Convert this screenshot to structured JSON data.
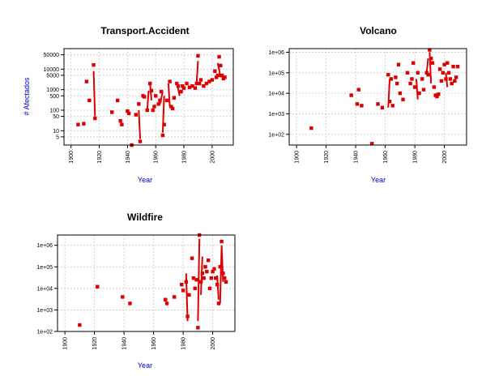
{
  "chart_data": [
    {
      "type": "scatter",
      "title": "Transport.Accident",
      "xlabel": "Year",
      "ylabel": "# Afectados",
      "xlim": [
        1895,
        2015
      ],
      "ylim": [
        2,
        100000
      ],
      "y_scale": "log",
      "grid": true,
      "x_ticks": [
        1900,
        1920,
        1940,
        1960,
        1980,
        2000
      ],
      "x_tick_labels": [
        "1900",
        "1920",
        "1940",
        "1960",
        "1980",
        "2000"
      ],
      "y_ticks": [
        5,
        10,
        50,
        100,
        500,
        1000,
        5000,
        10000,
        50000
      ],
      "y_tick_labels": [
        "5",
        "10",
        "50",
        "100",
        "500",
        "1000",
        "5000",
        "10000",
        "50000"
      ],
      "color": "#dd0000",
      "points": [
        [
          1905,
          20
        ],
        [
          1909,
          22
        ],
        [
          1911,
          2500
        ],
        [
          1913,
          300
        ],
        [
          1916,
          16000
        ],
        [
          1917,
          40
        ],
        [
          1929,
          80
        ],
        [
          1933,
          300
        ],
        [
          1935,
          30
        ],
        [
          1936,
          20
        ],
        [
          1940,
          90
        ],
        [
          1941,
          70
        ],
        [
          1943,
          2
        ],
        [
          1946,
          60
        ],
        [
          1948,
          200
        ],
        [
          1949,
          3
        ],
        [
          1951,
          500
        ],
        [
          1952,
          450
        ],
        [
          1954,
          100
        ],
        [
          1956,
          2000
        ],
        [
          1957,
          900
        ],
        [
          1958,
          100
        ],
        [
          1959,
          150
        ],
        [
          1960,
          500
        ],
        [
          1962,
          200
        ],
        [
          1963,
          300
        ],
        [
          1964,
          800
        ],
        [
          1965,
          6
        ],
        [
          1966,
          20
        ],
        [
          1968,
          300
        ],
        [
          1970,
          2500
        ],
        [
          1971,
          150
        ],
        [
          1972,
          120
        ],
        [
          1973,
          400
        ],
        [
          1975,
          2000
        ],
        [
          1976,
          1500
        ],
        [
          1978,
          800
        ],
        [
          1979,
          1500
        ],
        [
          1980,
          1200
        ],
        [
          1982,
          2000
        ],
        [
          1984,
          1300
        ],
        [
          1986,
          1500
        ],
        [
          1988,
          1200
        ],
        [
          1989,
          2000
        ],
        [
          1990,
          45000
        ],
        [
          1991,
          2000
        ],
        [
          1992,
          3000
        ],
        [
          1994,
          1500
        ],
        [
          1996,
          2000
        ],
        [
          1998,
          2500
        ],
        [
          2000,
          3000
        ],
        [
          2002,
          8000
        ],
        [
          2003,
          4000
        ],
        [
          2004,
          5000
        ],
        [
          2005,
          40000
        ],
        [
          2006,
          15000
        ],
        [
          2007,
          5000
        ],
        [
          2008,
          3500
        ],
        [
          2009,
          4000
        ]
      ],
      "segments": [
        [
          [
            1916,
            8000
          ],
          [
            1917,
            50
          ]
        ],
        [
          [
            1948,
            100
          ],
          [
            1949,
            4
          ]
        ],
        [
          [
            1954,
            100
          ],
          [
            1955,
            900
          ]
        ],
        [
          [
            1956,
            2000
          ],
          [
            1957,
            300
          ]
        ],
        [
          [
            1963,
            200
          ],
          [
            1965,
            800
          ]
        ],
        [
          [
            1965,
            8
          ],
          [
            1966,
            500
          ]
        ],
        [
          [
            1969,
            2000
          ],
          [
            1970,
            150
          ]
        ],
        [
          [
            1975,
            2000
          ],
          [
            1977,
            500
          ]
        ],
        [
          [
            1989,
            2000
          ],
          [
            1990,
            25000
          ]
        ],
        [
          [
            2004,
            20000
          ],
          [
            2006,
            4000
          ]
        ]
      ]
    },
    {
      "type": "scatter",
      "title": "Volcano",
      "xlabel": "Year",
      "ylabel": "",
      "xlim": [
        1895,
        2015
      ],
      "ylim": [
        30,
        1500000
      ],
      "y_scale": "log",
      "grid": true,
      "x_ticks": [
        1900,
        1920,
        1940,
        1960,
        1980,
        2000
      ],
      "x_tick_labels": [
        "1900",
        "1920",
        "1940",
        "1960",
        "1980",
        "2000"
      ],
      "y_ticks": [
        100,
        1000,
        10000,
        100000,
        1000000
      ],
      "y_tick_labels": [
        "1e+02",
        "1e+03",
        "1e+04",
        "1e+05",
        "1e+06"
      ],
      "color": "#dd0000",
      "points": [
        [
          1910,
          200
        ],
        [
          1937,
          8000
        ],
        [
          1941,
          3000
        ],
        [
          1942,
          15000
        ],
        [
          1944,
          2500
        ],
        [
          1951,
          35
        ],
        [
          1955,
          3000
        ],
        [
          1958,
          2000
        ],
        [
          1962,
          80000
        ],
        [
          1963,
          4000
        ],
        [
          1964,
          50000
        ],
        [
          1965,
          2500
        ],
        [
          1967,
          60000
        ],
        [
          1968,
          30000
        ],
        [
          1969,
          250000
        ],
        [
          1970,
          10000
        ],
        [
          1972,
          5000
        ],
        [
          1975,
          100000
        ],
        [
          1977,
          30000
        ],
        [
          1978,
          50000
        ],
        [
          1979,
          300000
        ],
        [
          1980,
          20000
        ],
        [
          1982,
          100000
        ],
        [
          1983,
          10000
        ],
        [
          1985,
          50000
        ],
        [
          1986,
          15000
        ],
        [
          1988,
          100000
        ],
        [
          1989,
          80000
        ],
        [
          1990,
          1300000
        ],
        [
          1991,
          500000
        ],
        [
          1992,
          300000
        ],
        [
          1993,
          20000
        ],
        [
          1994,
          8000
        ],
        [
          1995,
          7000
        ],
        [
          1996,
          9000
        ],
        [
          1997,
          150000
        ],
        [
          1998,
          40000
        ],
        [
          1999,
          100000
        ],
        [
          2000,
          250000
        ],
        [
          2001,
          50000
        ],
        [
          2002,
          300000
        ],
        [
          2003,
          100000
        ],
        [
          2004,
          50000
        ],
        [
          2005,
          30000
        ],
        [
          2006,
          200000
        ],
        [
          2007,
          40000
        ],
        [
          2008,
          60000
        ],
        [
          2009,
          200000
        ]
      ],
      "segments": [
        [
          [
            1962,
            2000
          ],
          [
            1963,
            50000
          ]
        ],
        [
          [
            1981,
            50000
          ],
          [
            1982,
            5000
          ]
        ],
        [
          [
            1988,
            100000
          ],
          [
            1989,
            500000
          ]
        ],
        [
          [
            1990,
            1000000
          ],
          [
            1991,
            30000
          ]
        ],
        [
          [
            2001,
            100000
          ],
          [
            2002,
            20000
          ]
        ]
      ]
    },
    {
      "type": "scatter",
      "title": "Wildfire",
      "xlabel": "Year",
      "ylabel": "",
      "xlim": [
        1895,
        2015
      ],
      "ylim": [
        100,
        3000000
      ],
      "y_scale": "log",
      "grid": true,
      "x_ticks": [
        1900,
        1920,
        1940,
        1960,
        1980,
        2000
      ],
      "x_tick_labels": [
        "1900",
        "1920",
        "1940",
        "1960",
        "1980",
        "2000"
      ],
      "y_ticks": [
        100,
        1000,
        10000,
        100000,
        1000000
      ],
      "y_tick_labels": [
        "1e+02",
        "1e+03",
        "1e+04",
        "1e+05",
        "1e+06"
      ],
      "color": "#dd0000",
      "points": [
        [
          1910,
          200
        ],
        [
          1922,
          12000
        ],
        [
          1939,
          4000
        ],
        [
          1944,
          2000
        ],
        [
          1968,
          3000
        ],
        [
          1969,
          2000
        ],
        [
          1974,
          4000
        ],
        [
          1979,
          15000
        ],
        [
          1980,
          8000
        ],
        [
          1982,
          20000
        ],
        [
          1983,
          500
        ],
        [
          1984,
          5000
        ],
        [
          1986,
          250000
        ],
        [
          1987,
          30000
        ],
        [
          1988,
          10000
        ],
        [
          1989,
          25000
        ],
        [
          1990,
          150
        ],
        [
          1991,
          3000000
        ],
        [
          1992,
          20000
        ],
        [
          1993,
          50000
        ],
        [
          1994,
          30000
        ],
        [
          1995,
          100000
        ],
        [
          1996,
          60000
        ],
        [
          1997,
          200000
        ],
        [
          1998,
          10000
        ],
        [
          1999,
          30000
        ],
        [
          2000,
          60000
        ],
        [
          2001,
          80000
        ],
        [
          2002,
          30000
        ],
        [
          2003,
          15000
        ],
        [
          2004,
          2000
        ],
        [
          2005,
          100000
        ],
        [
          2006,
          1500000
        ],
        [
          2007,
          50000
        ],
        [
          2008,
          30000
        ],
        [
          2009,
          20000
        ]
      ],
      "segments": [
        [
          [
            1982,
            50000
          ],
          [
            1983,
            300
          ]
        ],
        [
          [
            1990,
            300
          ],
          [
            1991,
            2000000
          ]
        ],
        [
          [
            1992,
            5000
          ],
          [
            1993,
            300000
          ]
        ],
        [
          [
            2003,
            40000
          ],
          [
            2004,
            3000
          ]
        ],
        [
          [
            2005,
            2000
          ],
          [
            2006,
            800000
          ]
        ],
        [
          [
            2006,
            1000000
          ],
          [
            2007,
            20000
          ]
        ]
      ]
    }
  ]
}
